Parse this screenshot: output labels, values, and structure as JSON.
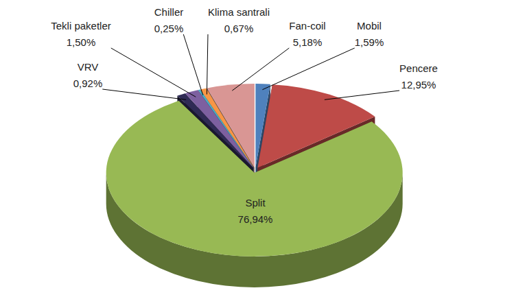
{
  "chart_data": {
    "type": "pie",
    "categories": [
      "Mobil",
      "Pencere",
      "Split",
      "VRV",
      "Tekli paketler",
      "Chiller",
      "Klima santrali",
      "Fan-coil"
    ],
    "values": [
      1.59,
      12.95,
      76.94,
      0.92,
      1.5,
      0.25,
      0.67,
      5.18
    ],
    "value_labels": [
      "1,59%",
      "12,95%",
      "76,94%",
      "0,92%",
      "1,50%",
      "0,25%",
      "0,67%",
      "5,18%"
    ],
    "colors": [
      "#4f81bd",
      "#be4b48",
      "#98b954",
      "#2f2b55",
      "#7d60a0",
      "#4aacc5",
      "#f79646",
      "#d99694"
    ],
    "data_labels": true
  }
}
